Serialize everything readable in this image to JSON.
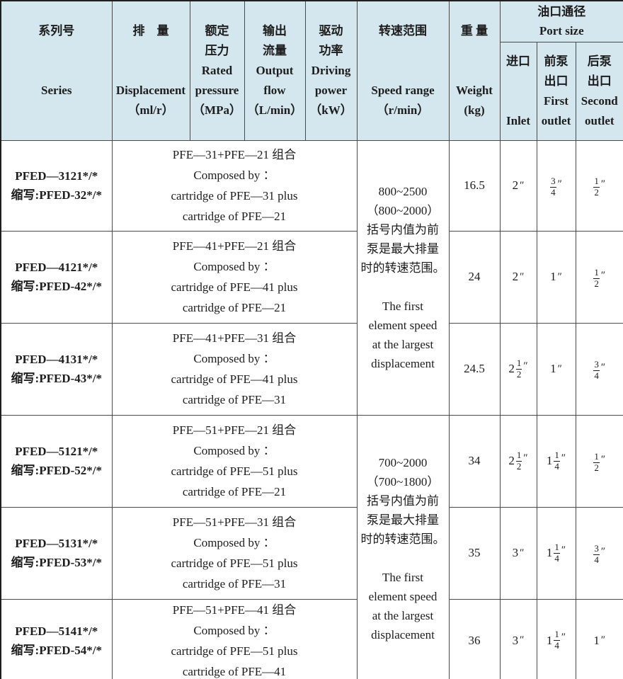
{
  "colors": {
    "header_bg": "#d4e6ee",
    "grid_line": "#4a4a4a",
    "text": "#1d1d1d"
  },
  "header": {
    "series": [
      "系列号",
      "",
      "",
      "Series",
      ""
    ],
    "displacement": [
      "排　量",
      "",
      "",
      "Displacement",
      "（ml/r）"
    ],
    "pressure": [
      "额定",
      "压力",
      "Rated",
      "pressure",
      "（MPa）"
    ],
    "flow": [
      "输出",
      "流量",
      "Output",
      "flow",
      "（L/min）"
    ],
    "power": [
      "驱动",
      "功率",
      "Driving",
      "power",
      "（kW）"
    ],
    "speed": [
      "转速范围",
      "",
      "",
      "Speed range",
      "（r/min）"
    ],
    "weight": [
      "重 量",
      "",
      "",
      "Weight",
      "(kg)"
    ],
    "port_size": [
      "油口通径",
      "Port size"
    ],
    "inlet": [
      "进口",
      "",
      "",
      "Inlet"
    ],
    "first_outlet": [
      "前泵",
      "出口",
      "First",
      "outlet"
    ],
    "second_outlet": [
      "后泵",
      "出口",
      "Second",
      "outlet"
    ]
  },
  "speed_notes": {
    "group1": [
      "800~2500",
      "（800~2000）",
      "括号内值为前",
      "泵是最大排量",
      "时的转速范围。",
      "",
      "The first",
      "element speed",
      "at the largest",
      "displacement"
    ],
    "group2": [
      "700~2000",
      "（700~1800）",
      "括号内值为前",
      "泵是最大排量",
      "时的转速范围。",
      "",
      "The first",
      "element speed",
      "at the largest",
      "displacement"
    ]
  },
  "rows": [
    {
      "series": [
        "PFED—3121*/*",
        "缩写:PFED-32*/*"
      ],
      "composed": [
        "PFE—31+PFE—21 组合",
        "Composed by ：",
        "cartridge of PFE—31 plus",
        "cartridge of PFE—21"
      ],
      "weight": "16.5",
      "inlet": {
        "whole": "2",
        "num": "",
        "den": "",
        "unit": "″"
      },
      "first": {
        "whole": "",
        "num": "3",
        "den": "4",
        "unit": "″"
      },
      "second": {
        "whole": "",
        "num": "1",
        "den": "2",
        "unit": "″"
      }
    },
    {
      "series": [
        "PFED—4121*/*",
        "缩写:PFED-42*/*"
      ],
      "composed": [
        "PFE—41+PFE—21 组合",
        "Composed by ：",
        "cartridge of PFE—41 plus",
        "cartridge of PFE—21"
      ],
      "weight": "24",
      "inlet": {
        "whole": "2",
        "num": "",
        "den": "",
        "unit": "″"
      },
      "first": {
        "whole": "1",
        "num": "",
        "den": "",
        "unit": "″"
      },
      "second": {
        "whole": "",
        "num": "1",
        "den": "2",
        "unit": "″"
      }
    },
    {
      "series": [
        "PFED—4131*/*",
        "缩写:PFED-43*/*"
      ],
      "composed": [
        "PFE—41+PFE—31 组合",
        "Composed by ：",
        "cartridge of PFE—41 plus",
        "cartridge of PFE—31"
      ],
      "weight": "24.5",
      "inlet": {
        "whole": "2",
        "num": "1",
        "den": "2",
        "unit": "″"
      },
      "first": {
        "whole": "1",
        "num": "",
        "den": "",
        "unit": "″"
      },
      "second": {
        "whole": "",
        "num": "3",
        "den": "4",
        "unit": "″"
      }
    },
    {
      "series": [
        "PFED—5121*/*",
        "缩写:PFED-52*/*"
      ],
      "composed": [
        "PFE—51+PFE—21 组合",
        "Composed by ：",
        "cartridge of PFE—51 plus",
        "cartridge of PFE—21"
      ],
      "weight": "34",
      "inlet": {
        "whole": "2",
        "num": "1",
        "den": "2",
        "unit": "″"
      },
      "first": {
        "whole": "1",
        "num": "1",
        "den": "4",
        "unit": "″"
      },
      "second": {
        "whole": "",
        "num": "1",
        "den": "2",
        "unit": "″"
      }
    },
    {
      "series": [
        "PFED—5131*/*",
        "缩写:PFED-53*/*"
      ],
      "composed": [
        "PFE—51+PFE—31 组合",
        "Composed by ：",
        "cartridge of PFE—51 plus",
        "cartridge of PFE—31"
      ],
      "weight": "35",
      "inlet": {
        "whole": "3",
        "num": "",
        "den": "",
        "unit": "″"
      },
      "first": {
        "whole": "1",
        "num": "1",
        "den": "4",
        "unit": "″"
      },
      "second": {
        "whole": "",
        "num": "3",
        "den": "4",
        "unit": "″"
      }
    },
    {
      "series": [
        "PFED—5141*/*",
        "缩写:PFED-54*/*"
      ],
      "composed": [
        "PFE—51+PFE—41 组合",
        "Composed by ：",
        "cartridge of PFE—51 plus",
        "cartridge of PFE—41"
      ],
      "weight": "36",
      "inlet": {
        "whole": "3",
        "num": "",
        "den": "",
        "unit": "″"
      },
      "first": {
        "whole": "1",
        "num": "1",
        "den": "4",
        "unit": "″"
      },
      "second": {
        "whole": "1",
        "num": "",
        "den": "",
        "unit": "″"
      }
    }
  ]
}
